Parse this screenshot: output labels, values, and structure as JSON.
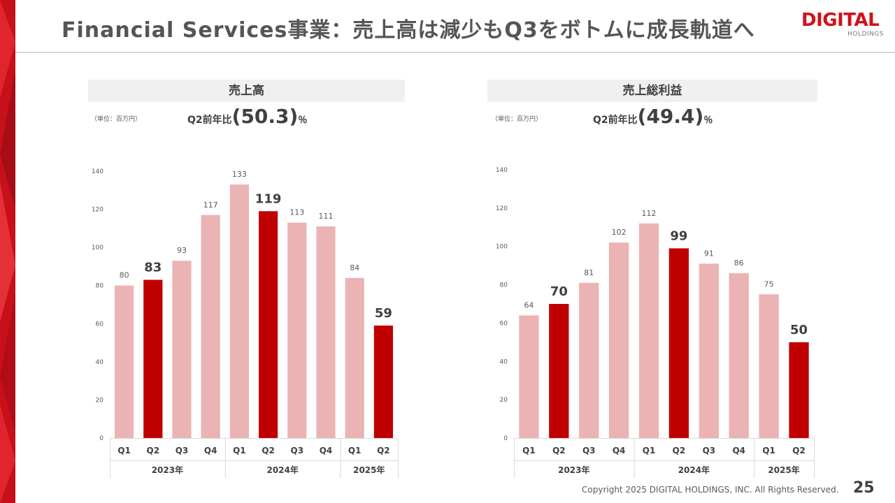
{
  "title": "Financial Services事業：売上高は減少もQ3をボトムに成長軌道へ",
  "logo": {
    "main": "DIGITAL",
    "sub": "HOLDINGS"
  },
  "footer": {
    "copyright": "Copyright 2025 DIGITAL HOLDINGS, INC. All Rights Reserved.",
    "page": "25"
  },
  "colors": {
    "bar_light": "#ebb3b3",
    "bar_dark": "#c00000",
    "accent": "#d0121b"
  },
  "charts": [
    {
      "header": "売上高",
      "unit": "（単位：百万円）",
      "yoy_prefix": "Q2前年比",
      "yoy_value": "(50.3)",
      "yoy_suffix": "％"
    },
    {
      "header": "売上総利益",
      "unit": "（単位：百万円）",
      "yoy_prefix": "Q2前年比",
      "yoy_value": "(49.4)",
      "yoy_suffix": "％"
    }
  ],
  "chart_data": [
    {
      "type": "bar",
      "title": "売上高",
      "categories": [
        "Q1",
        "Q2",
        "Q3",
        "Q4",
        "Q1",
        "Q2",
        "Q3",
        "Q4",
        "Q1",
        "Q2"
      ],
      "groups": [
        {
          "label": "2023年",
          "count": 4
        },
        {
          "label": "2024年",
          "count": 4
        },
        {
          "label": "2025年",
          "count": 2
        }
      ],
      "values": [
        80,
        83,
        93,
        117,
        133,
        119,
        113,
        111,
        84,
        59
      ],
      "highlight": [
        false,
        true,
        false,
        false,
        false,
        true,
        false,
        false,
        false,
        true
      ],
      "ylim": [
        0,
        140
      ],
      "yticks": [
        0,
        20,
        40,
        60,
        80,
        100,
        120,
        140
      ],
      "grid": false
    },
    {
      "type": "bar",
      "title": "売上総利益",
      "categories": [
        "Q1",
        "Q2",
        "Q3",
        "Q4",
        "Q1",
        "Q2",
        "Q3",
        "Q4",
        "Q1",
        "Q2"
      ],
      "groups": [
        {
          "label": "2023年",
          "count": 4
        },
        {
          "label": "2024年",
          "count": 4
        },
        {
          "label": "2025年",
          "count": 2
        }
      ],
      "values": [
        64,
        70,
        81,
        102,
        112,
        99,
        91,
        86,
        75,
        50
      ],
      "highlight": [
        false,
        true,
        false,
        false,
        false,
        true,
        false,
        false,
        false,
        true
      ],
      "ylim": [
        0,
        140
      ],
      "yticks": [
        0,
        20,
        40,
        60,
        80,
        100,
        120,
        140
      ],
      "grid": false
    }
  ]
}
